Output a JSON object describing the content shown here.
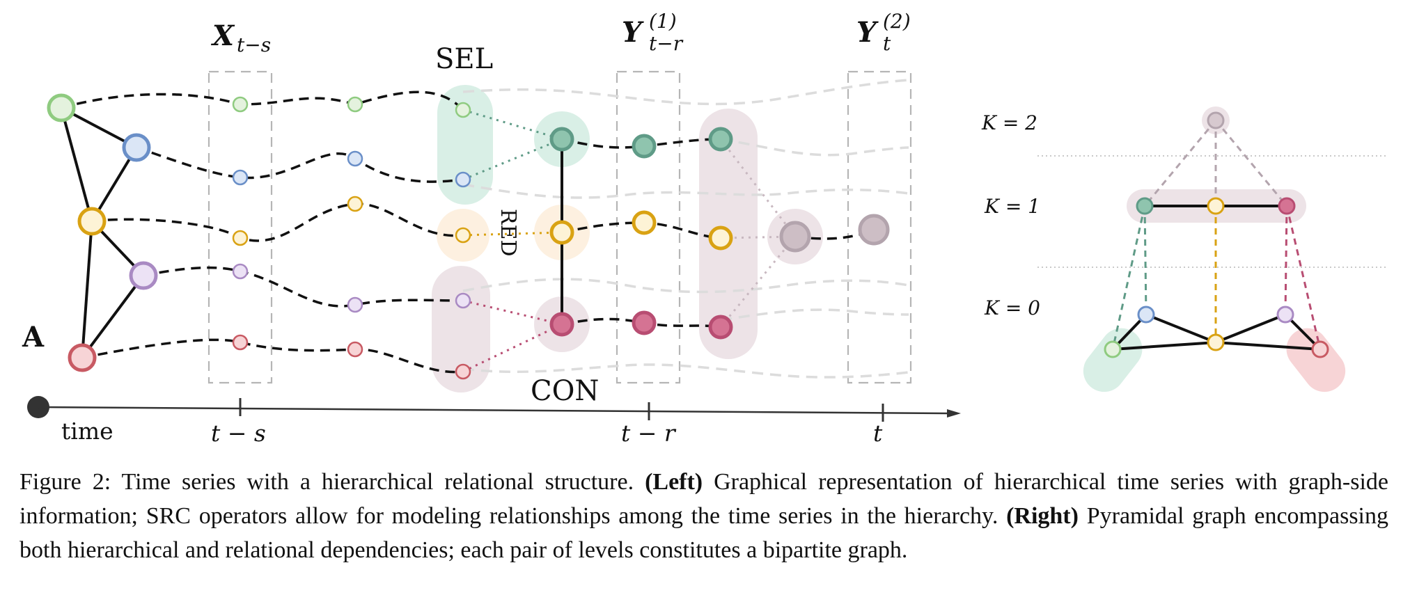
{
  "labels": {
    "x_series": "X",
    "x_series_sub": "t−s",
    "y1": "Y",
    "y1_sub": "t−r",
    "y1_sup": "(1)",
    "y2": "Y",
    "y2_sub": "t",
    "y2_sup": "(2)",
    "sel": "SEL",
    "red": "RED",
    "con": "CON",
    "adjacency": "A"
  },
  "axis": {
    "time": "time",
    "tick_t_minus_s": "t − s",
    "tick_t_minus_r": "t − r",
    "tick_t": "t"
  },
  "pyramid": {
    "k2": "K = 2",
    "k1": "K = 1",
    "k0": "K = 0"
  },
  "caption": {
    "prefix": "Figure 2: Time series with a hierarchical relational structure. ",
    "left_bold": "(Left)",
    "left_text": " Graphical representation of hierarchical time series with graph-side information; SRC operators allow for modeling relationships among the time series in the hierarchy. ",
    "right_bold": "(Right)",
    "right_text": " Pyramidal graph encompassing both hierarchical and relational dependencies; each pair of levels constitutes a bipartite graph."
  },
  "colors": {
    "green": "#8fcb80",
    "green_fill": "#e4f2de",
    "blue": "#6a8fc8",
    "blue_fill": "#dbe6f6",
    "orange": "#d9a213",
    "orange_fill": "#fdf3d6",
    "purple": "#a98ac3",
    "purple_fill": "#ece2f5",
    "red": "#c85a63",
    "red_fill": "#f7d4d6",
    "teal": "#5f9b87",
    "teal_fill": "#8fc4ae",
    "pink": "#b84d72",
    "pink_fill": "#d57393",
    "gray": "#b3a4ad",
    "gray_fill": "#cdbec5",
    "sel_band": "#d9efe6",
    "red_band": "#fdf0e0",
    "con_band": "#ede3e7"
  }
}
